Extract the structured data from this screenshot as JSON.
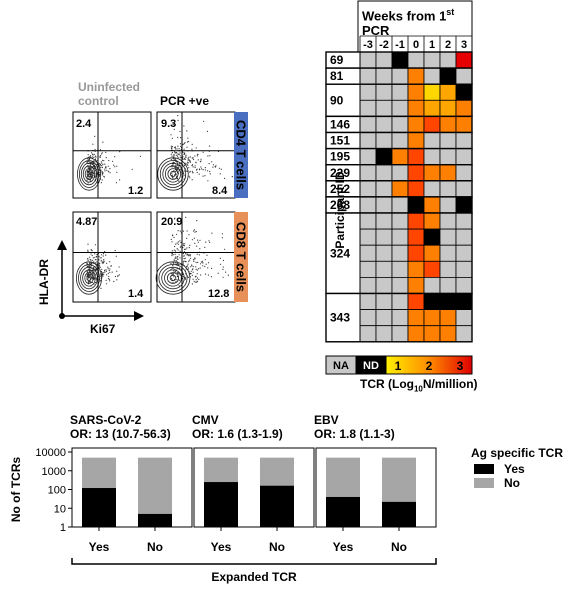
{
  "flow": {
    "col_labels": [
      "Uninfected control",
      "PCR +ve"
    ],
    "row_labels": [
      "CD4 T cells",
      "CD8 T cells"
    ],
    "y_axis": "HLA-DR",
    "x_axis": "Ki67",
    "quadrants": {
      "cd4_uninf": {
        "top_left": "2.4",
        "bottom_right": "1.2"
      },
      "cd4_pcr": {
        "top_left": "9.3",
        "bottom_right": "8.4"
      },
      "cd8_uninf": {
        "top_left": "4.87",
        "bottom_right": "1.4"
      },
      "cd8_pcr": {
        "top_left": "20.9",
        "bottom_right": "12.8"
      }
    },
    "colors": {
      "cd4_band": "#4a6fc0",
      "cd8_band": "#e8905a",
      "uninf_label": "#999999"
    }
  },
  "heatmap": {
    "title_part1": "Weeks from 1",
    "title_sup": "st",
    "title_part2": "PCR",
    "y_title": "Participant ID",
    "legend_title_a": "TCR (Log",
    "legend_title_sub": "10",
    "legend_title_b": "N/million)",
    "legend_na": "NA",
    "legend_nd": "ND",
    "legend_ticks": [
      "1",
      "2",
      "3"
    ],
    "colors": {
      "NA": "#c8c8c8",
      "ND": "#000000",
      "1": "#ffd700",
      "1.5": "#ffa500",
      "2": "#ff7f00",
      "2.5": "#ff4500",
      "3": "#e60000"
    }
  },
  "chart_data": [
    {
      "type": "heatmap",
      "title": "Weeks from 1st PCR",
      "ylabel": "Participant ID",
      "x": [
        "-3",
        "-2",
        "-1",
        "0",
        "1",
        "2",
        "3"
      ],
      "participants": [
        {
          "id": "69",
          "rows": [
            [
              "NA",
              "NA",
              "ND",
              "NA",
              "NA",
              "NA",
              "3"
            ]
          ]
        },
        {
          "id": "81",
          "rows": [
            [
              "NA",
              "NA",
              "NA",
              "2",
              "NA",
              "ND",
              "NA"
            ]
          ]
        },
        {
          "id": "90",
          "rows": [
            [
              "NA",
              "NA",
              "NA",
              "2",
              "1",
              "1.5",
              "ND"
            ],
            [
              "NA",
              "NA",
              "NA",
              "2",
              "1.5",
              "1.5",
              "2"
            ]
          ]
        },
        {
          "id": "146",
          "rows": [
            [
              "NA",
              "NA",
              "NA",
              "2",
              "2.5",
              "2",
              "2"
            ]
          ]
        },
        {
          "id": "151",
          "rows": [
            [
              "NA",
              "NA",
              "NA",
              "2",
              "NA",
              "NA",
              "NA"
            ]
          ]
        },
        {
          "id": "195",
          "rows": [
            [
              "NA",
              "ND",
              "2",
              "2.5",
              "NA",
              "NA",
              "NA"
            ]
          ]
        },
        {
          "id": "229",
          "rows": [
            [
              "NA",
              "NA",
              "NA",
              "2.5",
              "2",
              "2",
              "NA"
            ]
          ]
        },
        {
          "id": "252",
          "rows": [
            [
              "NA",
              "NA",
              "2",
              "2.5",
              "NA",
              "NA",
              "NA"
            ]
          ]
        },
        {
          "id": "268",
          "rows": [
            [
              "NA",
              "NA",
              "NA",
              "ND",
              "2",
              "NA",
              "ND"
            ]
          ]
        },
        {
          "id": "324",
          "rows": [
            [
              "NA",
              "NA",
              "NA",
              "2.5",
              "2",
              "NA",
              "NA"
            ],
            [
              "NA",
              "NA",
              "NA",
              "2.5",
              "ND",
              "NA",
              "NA"
            ],
            [
              "NA",
              "NA",
              "NA",
              "2.5",
              "2",
              "NA",
              "NA"
            ],
            [
              "NA",
              "NA",
              "NA",
              "2",
              "2.5",
              "NA",
              "NA"
            ],
            [
              "NA",
              "NA",
              "NA",
              "2",
              "NA",
              "NA",
              "NA"
            ]
          ]
        },
        {
          "id": "343",
          "rows": [
            [
              "NA",
              "NA",
              "NA",
              "2.5",
              "ND",
              "ND",
              "ND"
            ],
            [
              "NA",
              "NA",
              "NA",
              "2",
              "2",
              "2",
              "NA"
            ],
            [
              "NA",
              "NA",
              "NA",
              "2",
              "2",
              "2",
              "NA"
            ]
          ]
        }
      ]
    },
    {
      "type": "bar",
      "ylabel": "No of TCRs",
      "xlabel": "Expanded TCR",
      "log_scale": true,
      "ylim": [
        1,
        10000
      ],
      "yticks": [
        "1",
        "10",
        "100",
        "1000",
        "10000"
      ],
      "legend_title": "Ag specific TCR",
      "legend": [
        {
          "name": "Yes",
          "color": "#000000"
        },
        {
          "name": "No",
          "color": "#a6a6a6"
        }
      ],
      "panels": [
        {
          "name": "SARS-CoV-2",
          "or": "OR: 13 (10.7-56.3)",
          "categories": [
            "Yes",
            "No"
          ],
          "yes_counts": [
            120,
            5
          ],
          "totals": [
            5000,
            5000
          ]
        },
        {
          "name": "CMV",
          "or": "OR: 1.6 (1.3-1.9)",
          "categories": [
            "Yes",
            "No"
          ],
          "yes_counts": [
            250,
            160
          ],
          "totals": [
            5000,
            5000
          ]
        },
        {
          "name": "EBV",
          "or": "OR: 1.8 (1.1-3)",
          "categories": [
            "Yes",
            "No"
          ],
          "yes_counts": [
            40,
            22
          ],
          "totals": [
            5000,
            5000
          ]
        }
      ]
    }
  ]
}
